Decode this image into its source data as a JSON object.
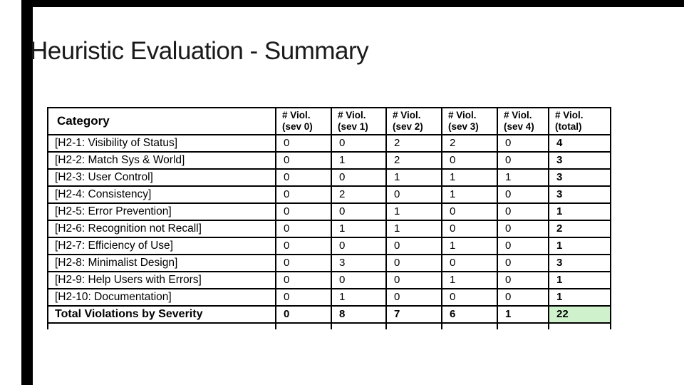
{
  "page": {
    "title": "Heuristic Evaluation - Summary"
  },
  "frame": {
    "bar_color": "#000000"
  },
  "table": {
    "columns": {
      "category": "Category",
      "severity": [
        {
          "l1": "# Viol.",
          "l2": "(sev 0)"
        },
        {
          "l1": "# Viol.",
          "l2": "(sev 1)"
        },
        {
          "l1": "# Viol.",
          "l2": "(sev 2)"
        },
        {
          "l1": "# Viol.",
          "l2": "(sev 3)"
        },
        {
          "l1": "# Viol.",
          "l2": "(sev 4)"
        },
        {
          "l1": "# Viol.",
          "l2": "(total)"
        }
      ]
    },
    "rows": [
      {
        "category": "[H2-1: Visibility of Status]",
        "values": [
          "0",
          "0",
          "2",
          "2",
          "0"
        ],
        "total": "4"
      },
      {
        "category": "[H2-2: Match Sys & World]",
        "values": [
          "0",
          "1",
          "2",
          "0",
          "0"
        ],
        "total": "3"
      },
      {
        "category": "[H2-3: User Control]",
        "values": [
          "0",
          "0",
          "1",
          "1",
          "1"
        ],
        "total": "3"
      },
      {
        "category": "[H2-4: Consistency]",
        "values": [
          "0",
          "2",
          "0",
          "1",
          "0"
        ],
        "total": "3"
      },
      {
        "category": "[H2-5: Error Prevention]",
        "values": [
          "0",
          "0",
          "1",
          "0",
          "0"
        ],
        "total": "1"
      },
      {
        "category": "[H2-6: Recognition not Recall]",
        "values": [
          "0",
          "1",
          "1",
          "0",
          "0"
        ],
        "total": "2"
      },
      {
        "category": "[H2-7: Efficiency of Use]",
        "values": [
          "0",
          "0",
          "0",
          "1",
          "0"
        ],
        "total": "1"
      },
      {
        "category": "[H2-8: Minimalist Design]",
        "values": [
          "0",
          "3",
          "0",
          "0",
          "0"
        ],
        "total": "3"
      },
      {
        "category": "[H2-9: Help Users with Errors]",
        "values": [
          "0",
          "0",
          "0",
          "1",
          "0"
        ],
        "total": "1"
      },
      {
        "category": "[H2-10: Documentation]",
        "values": [
          "0",
          "1",
          "0",
          "0",
          "0"
        ],
        "total": "1"
      }
    ],
    "total_row": {
      "category": "Total Violations by Severity",
      "values": [
        "0",
        "8",
        "7",
        "6",
        "1"
      ],
      "total": "22"
    },
    "colors": {
      "border": "#000000",
      "total_highlight": "#cff2cc"
    }
  }
}
